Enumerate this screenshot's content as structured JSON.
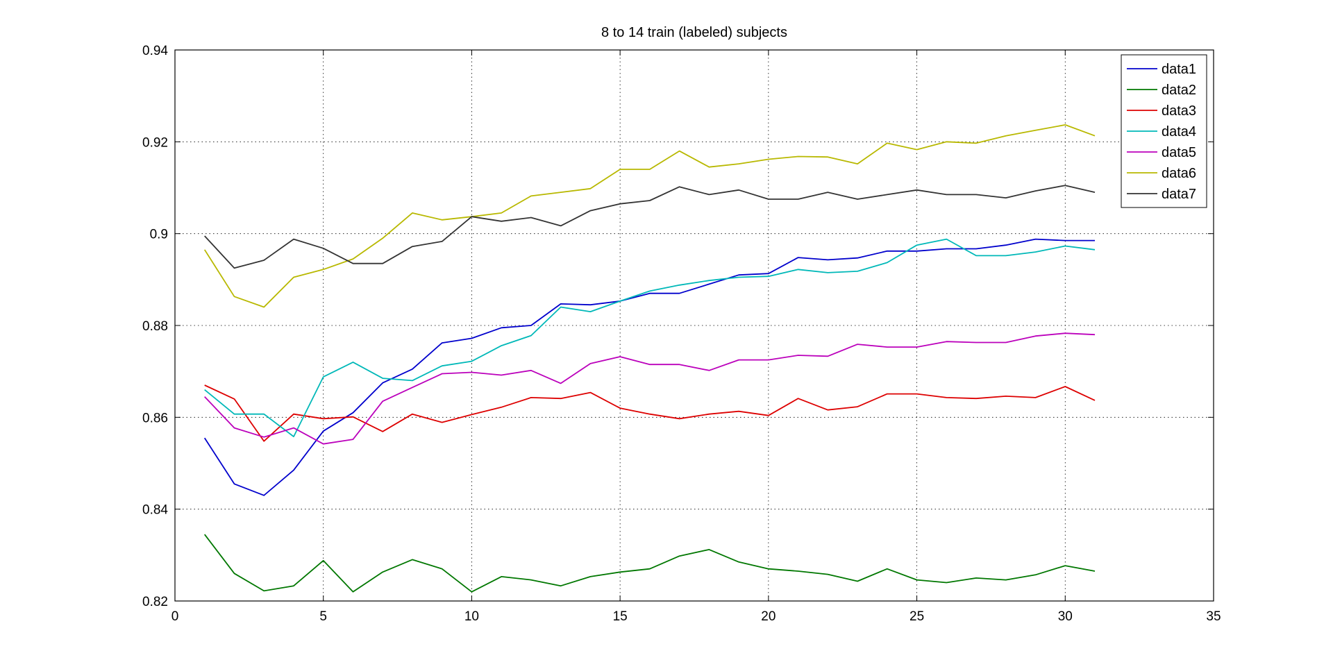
{
  "chart_data": {
    "type": "line",
    "title": "8 to 14 train (labeled) subjects",
    "xlabel": "",
    "ylabel": "",
    "xlim": [
      0,
      35
    ],
    "ylim": [
      0.82,
      0.94
    ],
    "xticks": [
      0,
      5,
      10,
      15,
      20,
      25,
      30,
      35
    ],
    "yticks": [
      0.82,
      0.84,
      0.86,
      0.88,
      0.9,
      0.92,
      0.94
    ],
    "xtick_labels": [
      "0",
      "5",
      "10",
      "15",
      "20",
      "25",
      "30",
      "35"
    ],
    "ytick_labels": [
      "0.82",
      "0.84",
      "0.86",
      "0.88",
      "0.9",
      "0.92",
      "0.94"
    ],
    "grid": true,
    "legend_position": "top-right",
    "x": [
      1,
      2,
      3,
      4,
      5,
      6,
      7,
      8,
      9,
      10,
      11,
      12,
      13,
      14,
      15,
      16,
      17,
      18,
      19,
      20,
      21,
      22,
      23,
      24,
      25,
      26,
      27,
      28,
      29,
      30,
      31
    ],
    "series": [
      {
        "name": "data1",
        "color": "#0000cc",
        "values": [
          0.8555,
          0.8455,
          0.843,
          0.8485,
          0.857,
          0.861,
          0.8675,
          0.8705,
          0.8762,
          0.8772,
          0.8795,
          0.88,
          0.8847,
          0.8845,
          0.8853,
          0.887,
          0.887,
          0.889,
          0.891,
          0.8913,
          0.8948,
          0.8943,
          0.8947,
          0.8962,
          0.8962,
          0.8967,
          0.8967,
          0.8975,
          0.8988,
          0.8985,
          0.8985
        ]
      },
      {
        "name": "data2",
        "color": "#007700",
        "values": [
          0.8345,
          0.826,
          0.8222,
          0.8233,
          0.8288,
          0.822,
          0.8263,
          0.829,
          0.827,
          0.822,
          0.8253,
          0.8246,
          0.8233,
          0.8253,
          0.8263,
          0.827,
          0.8298,
          0.8312,
          0.8285,
          0.827,
          0.8265,
          0.8258,
          0.8243,
          0.827,
          0.8246,
          0.824,
          0.825,
          0.8246,
          0.8257,
          0.8277,
          0.8265
        ]
      },
      {
        "name": "data3",
        "color": "#dd0000",
        "values": [
          0.867,
          0.864,
          0.8548,
          0.8607,
          0.8597,
          0.8601,
          0.8569,
          0.8607,
          0.8589,
          0.8606,
          0.8622,
          0.8643,
          0.8641,
          0.8654,
          0.862,
          0.8607,
          0.8597,
          0.8607,
          0.8613,
          0.8604,
          0.8641,
          0.8616,
          0.8623,
          0.8651,
          0.8651,
          0.8643,
          0.8641,
          0.8646,
          0.8643,
          0.8667,
          0.8637
        ]
      },
      {
        "name": "data4",
        "color": "#00b8b8",
        "values": [
          0.866,
          0.8607,
          0.8607,
          0.8558,
          0.8688,
          0.872,
          0.8685,
          0.868,
          0.8712,
          0.8722,
          0.8756,
          0.8778,
          0.884,
          0.883,
          0.8853,
          0.8875,
          0.8888,
          0.8898,
          0.8905,
          0.8907,
          0.8922,
          0.8915,
          0.8918,
          0.8937,
          0.8975,
          0.8988,
          0.8952,
          0.8952,
          0.896,
          0.8973,
          0.8965
        ]
      },
      {
        "name": "data5",
        "color": "#bb00bb",
        "values": [
          0.8645,
          0.8577,
          0.8557,
          0.8577,
          0.8542,
          0.8552,
          0.8635,
          0.8665,
          0.8695,
          0.8698,
          0.8692,
          0.8702,
          0.8674,
          0.8717,
          0.8732,
          0.8715,
          0.8715,
          0.8702,
          0.8725,
          0.8725,
          0.8735,
          0.8733,
          0.8759,
          0.8753,
          0.8753,
          0.8765,
          0.8763,
          0.8763,
          0.8777,
          0.8783,
          0.878
        ]
      },
      {
        "name": "data6",
        "color": "#b8b800",
        "values": [
          0.8965,
          0.8863,
          0.884,
          0.8905,
          0.8922,
          0.8945,
          0.899,
          0.9045,
          0.903,
          0.9037,
          0.9045,
          0.9082,
          0.909,
          0.9098,
          0.914,
          0.914,
          0.918,
          0.9145,
          0.9152,
          0.9162,
          0.9168,
          0.9167,
          0.9152,
          0.9197,
          0.9183,
          0.92,
          0.9197,
          0.9213,
          0.9225,
          0.9237,
          0.9213
        ]
      },
      {
        "name": "data7",
        "color": "#333333",
        "values": [
          0.8995,
          0.8925,
          0.8942,
          0.8988,
          0.8968,
          0.8935,
          0.8935,
          0.8972,
          0.8983,
          0.9037,
          0.9027,
          0.9035,
          0.9017,
          0.905,
          0.9065,
          0.9072,
          0.9102,
          0.9085,
          0.9095,
          0.9075,
          0.9075,
          0.909,
          0.9075,
          0.9085,
          0.9095,
          0.9085,
          0.9085,
          0.9078,
          0.9093,
          0.9105,
          0.909
        ]
      }
    ]
  }
}
